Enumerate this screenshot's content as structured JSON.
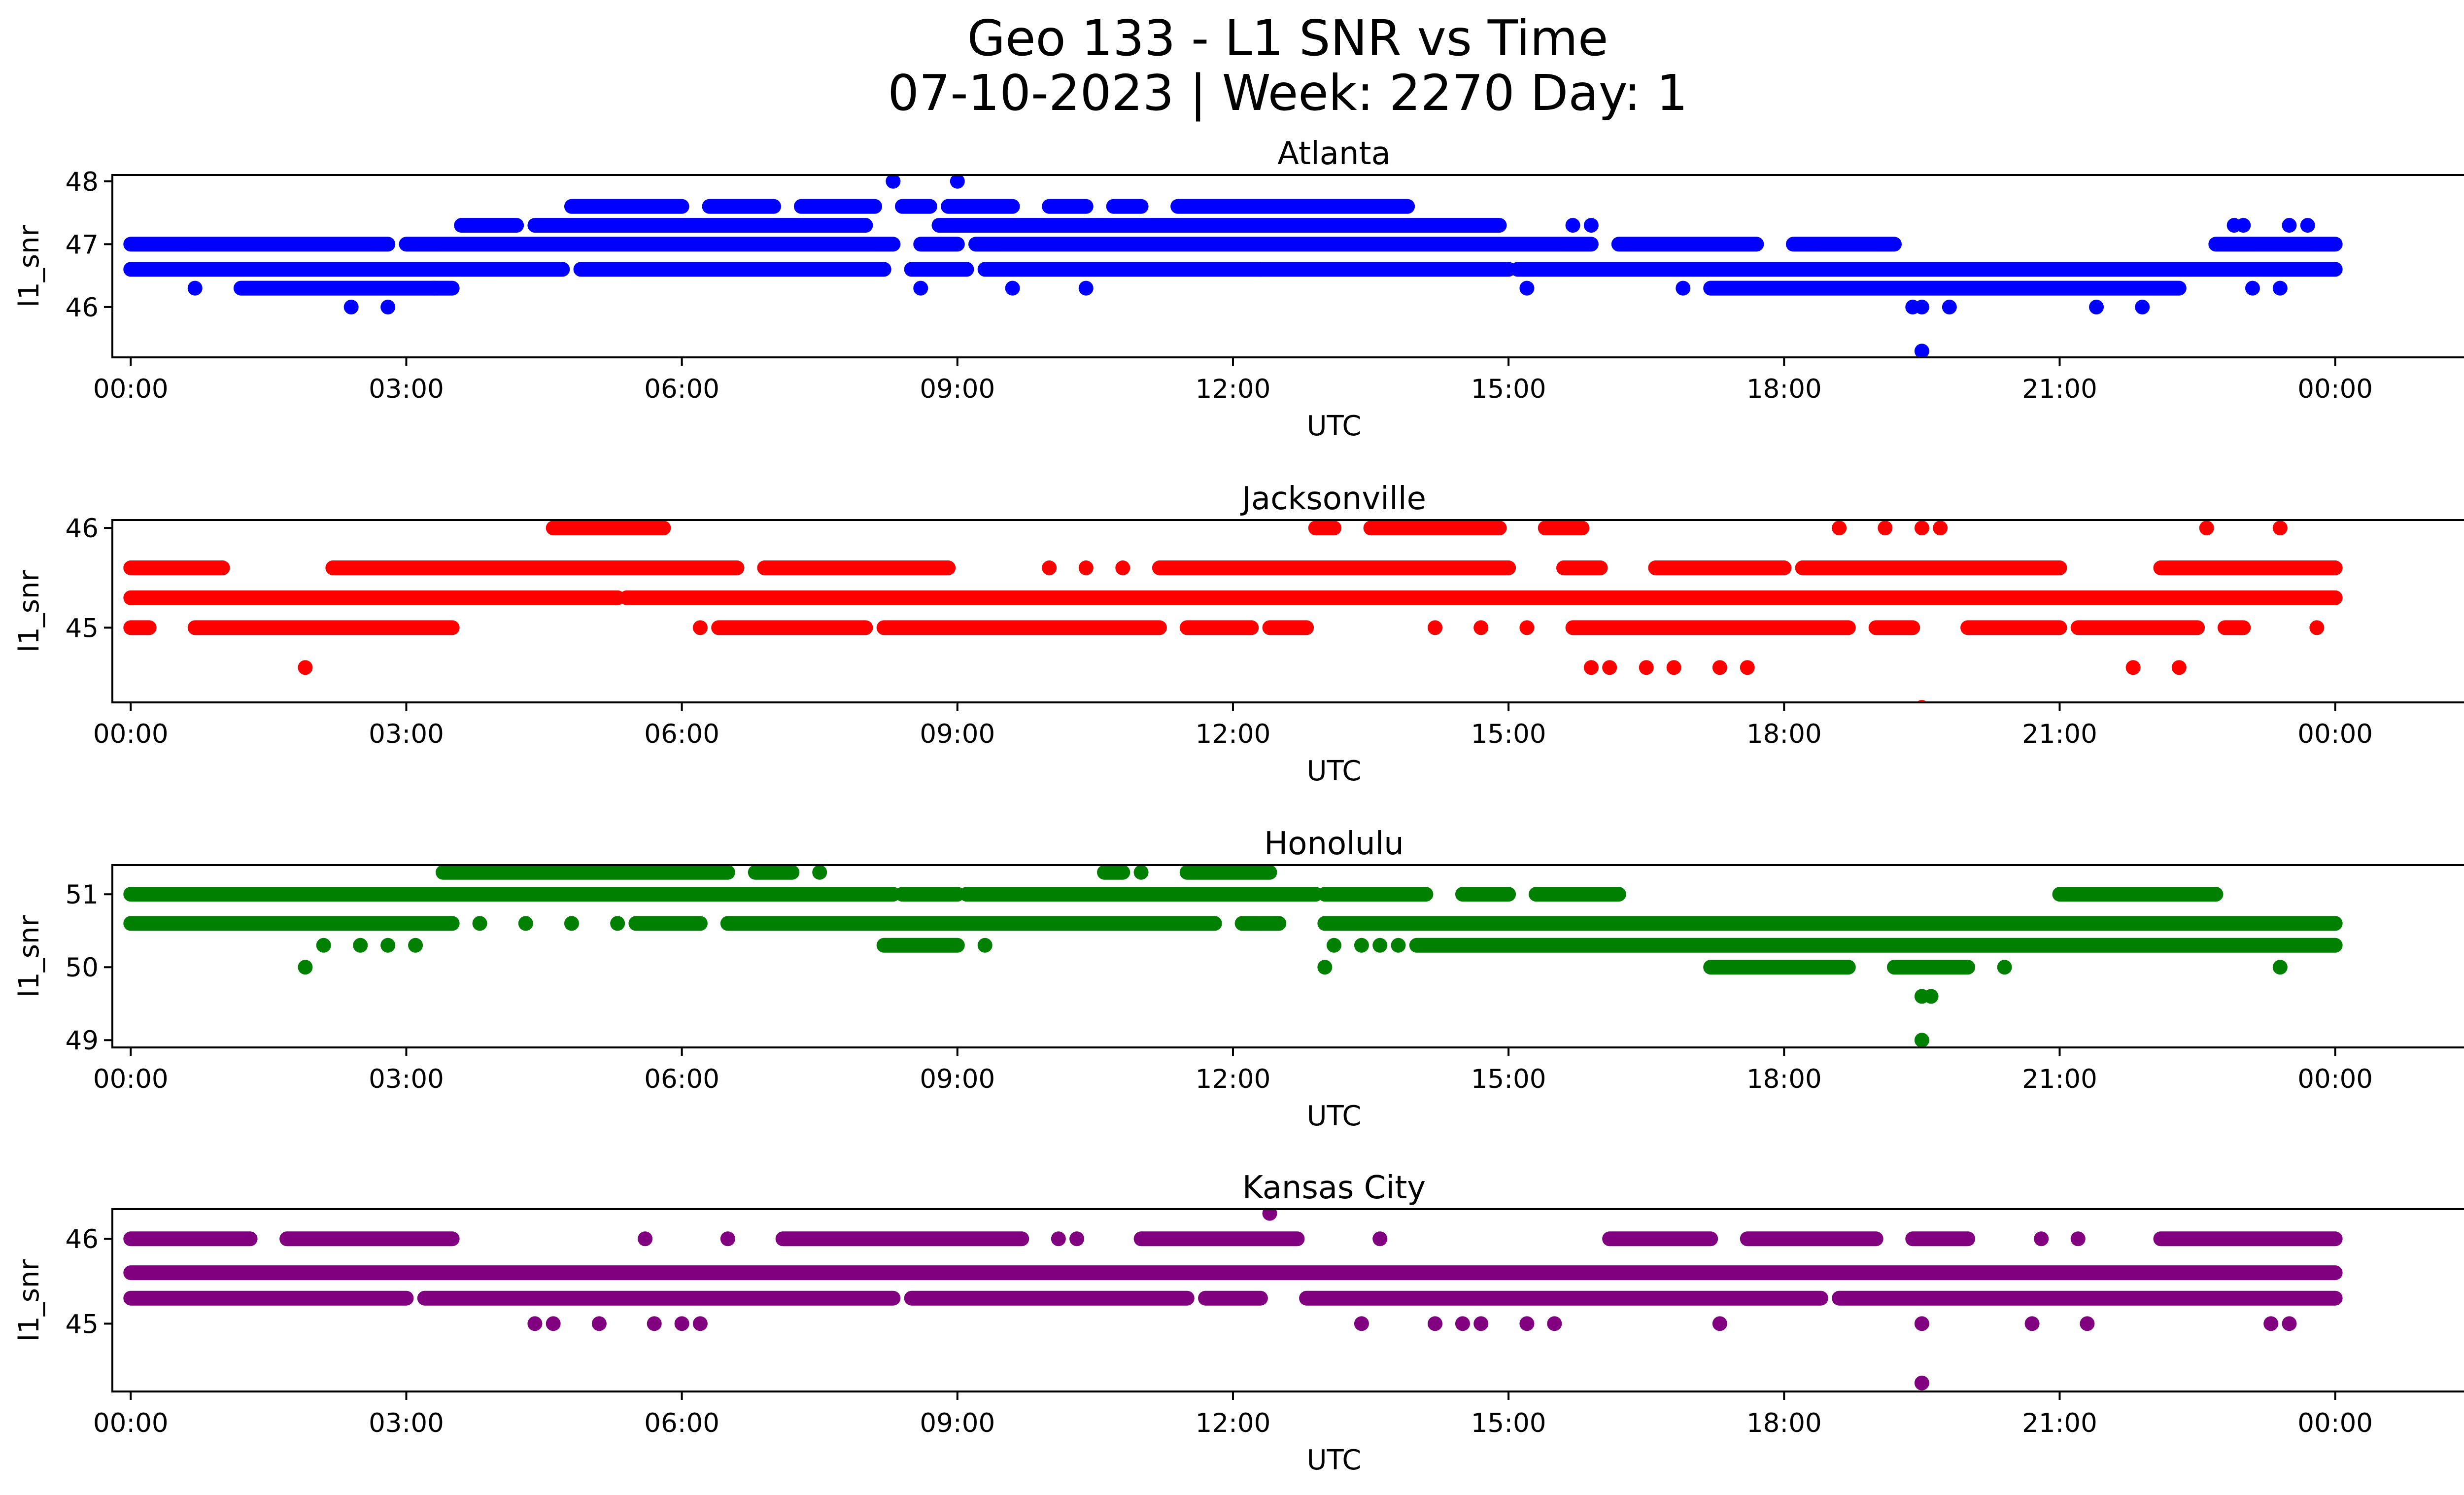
{
  "figure": {
    "title_line1": "Geo 133 - L1 SNR vs Time",
    "title_line2": "07-10-2023 | Week: 2270 Day: 1"
  },
  "chart_data": [
    {
      "type": "scatter",
      "title": "Atlanta",
      "xlabel": "UTC",
      "ylabel": "l1_snr",
      "color": "#0000ff",
      "x_ticks": [
        "00:00",
        "03:00",
        "06:00",
        "09:00",
        "12:00",
        "15:00",
        "18:00",
        "21:00",
        "00:00"
      ],
      "y_ticks": [
        46,
        47,
        48
      ],
      "xlim": [
        -0.2,
        26.4
      ],
      "ylim": [
        45.2,
        48.1
      ],
      "series": [
        {
          "values": [
            {
              "y": 46.6,
              "segments": [
                [
                  0,
                  4.7
                ],
                [
                  4.9,
                  8.2
                ],
                [
                  8.5,
                  9.1
                ],
                [
                  9.3,
                  15.0
                ],
                [
                  15.1,
                  24
                ]
              ]
            },
            {
              "y": 47.0,
              "segments": [
                [
                  0,
                  2.8
                ],
                [
                  3.0,
                  8.3
                ],
                [
                  8.6,
                  9.0
                ],
                [
                  9.2,
                  15.9
                ],
                [
                  16.2,
                  17.7
                ],
                [
                  18.1,
                  19.2
                ],
                [
                  22.7,
                  24
                ]
              ]
            },
            {
              "y": 47.3,
              "segments": [
                [
                  3.6,
                  4.2
                ],
                [
                  4.4,
                  8.0
                ],
                [
                  8.8,
                  14.9
                ]
              ]
            },
            {
              "y": 47.6,
              "segments": [
                [
                  4.8,
                  6.0
                ],
                [
                  6.3,
                  7.0
                ],
                [
                  7.3,
                  8.1
                ],
                [
                  8.4,
                  8.7
                ],
                [
                  8.9,
                  9.6
                ],
                [
                  10.0,
                  10.4
                ],
                [
                  10.7,
                  11.0
                ],
                [
                  11.4,
                  13.9
                ]
              ]
            },
            {
              "y": 46.3,
              "segments": [
                [
                  1.2,
                  3.5
                ],
                [
                  17.2,
                  22.3
                ]
              ]
            }
          ]
        },
        {
          "values": [
            {
              "x": 0.7,
              "y": 46.3
            },
            {
              "x": 2.4,
              "y": 46.0
            },
            {
              "x": 2.8,
              "y": 46.0
            },
            {
              "x": 3.3,
              "y": 46.3
            },
            {
              "x": 8.3,
              "y": 48.0
            },
            {
              "x": 9.0,
              "y": 48.0
            },
            {
              "x": 8.6,
              "y": 46.3
            },
            {
              "x": 9.6,
              "y": 46.3
            },
            {
              "x": 10.4,
              "y": 46.3
            },
            {
              "x": 12.3,
              "y": 46.6
            },
            {
              "x": 15.2,
              "y": 46.3
            },
            {
              "x": 15.7,
              "y": 47.3
            },
            {
              "x": 15.9,
              "y": 47.3
            },
            {
              "x": 16.9,
              "y": 46.3
            },
            {
              "x": 19.4,
              "y": 46.0
            },
            {
              "x": 19.5,
              "y": 46.0
            },
            {
              "x": 19.8,
              "y": 46.0
            },
            {
              "x": 19.5,
              "y": 45.3
            },
            {
              "x": 21.4,
              "y": 46.0
            },
            {
              "x": 21.9,
              "y": 46.0
            },
            {
              "x": 22.9,
              "y": 47.3
            },
            {
              "x": 23.0,
              "y": 47.3
            },
            {
              "x": 23.1,
              "y": 46.3
            },
            {
              "x": 23.5,
              "y": 47.3
            },
            {
              "x": 23.7,
              "y": 47.3
            },
            {
              "x": 23.4,
              "y": 46.3
            }
          ]
        }
      ]
    },
    {
      "type": "scatter",
      "title": "Jacksonville",
      "xlabel": "UTC",
      "ylabel": "l1_snr",
      "color": "#ff0000",
      "x_ticks": [
        "00:00",
        "03:00",
        "06:00",
        "09:00",
        "12:00",
        "15:00",
        "18:00",
        "21:00",
        "00:00"
      ],
      "y_ticks": [
        45,
        46
      ],
      "xlim": [
        -0.2,
        26.4
      ],
      "ylim": [
        44.25,
        46.08
      ],
      "series": [
        {
          "values": [
            {
              "y": 45.3,
              "segments": [
                [
                  0,
                  5.3
                ],
                [
                  5.4,
                  24
                ]
              ]
            },
            {
              "y": 45.6,
              "segments": [
                [
                  0,
                  1.0
                ],
                [
                  2.2,
                  6.6
                ],
                [
                  6.9,
                  8.9
                ],
                [
                  11.2,
                  15.0
                ],
                [
                  15.6,
                  16.0
                ],
                [
                  16.6,
                  18.0
                ],
                [
                  18.2,
                  21.0
                ],
                [
                  22.1,
                  24
                ]
              ]
            },
            {
              "y": 45.0,
              "segments": [
                [
                  0,
                  0.2
                ],
                [
                  0.7,
                  3.5
                ],
                [
                  6.4,
                  8.0
                ],
                [
                  8.2,
                  11.2
                ],
                [
                  11.5,
                  12.2
                ],
                [
                  12.4,
                  12.8
                ],
                [
                  15.7,
                  18.7
                ],
                [
                  19.0,
                  19.4
                ],
                [
                  20.0,
                  21.0
                ],
                [
                  21.2,
                  22.5
                ],
                [
                  22.8,
                  23.0
                ]
              ]
            },
            {
              "y": 46.0,
              "segments": [
                [
                  4.6,
                  5.8
                ],
                [
                  12.9,
                  13.1
                ],
                [
                  13.5,
                  14.9
                ],
                [
                  15.4,
                  15.8
                ]
              ]
            }
          ]
        },
        {
          "values": [
            {
              "x": 1.9,
              "y": 44.6
            },
            {
              "x": 15.9,
              "y": 44.6
            },
            {
              "x": 16.1,
              "y": 44.6
            },
            {
              "x": 16.5,
              "y": 44.6
            },
            {
              "x": 16.8,
              "y": 44.6
            },
            {
              "x": 17.3,
              "y": 44.6
            },
            {
              "x": 17.6,
              "y": 44.6
            },
            {
              "x": 19.5,
              "y": 44.2
            },
            {
              "x": 21.8,
              "y": 44.6
            },
            {
              "x": 22.3,
              "y": 44.6
            },
            {
              "x": 6.2,
              "y": 45.0
            },
            {
              "x": 14.7,
              "y": 45.0
            },
            {
              "x": 15.2,
              "y": 45.0
            },
            {
              "x": 10.0,
              "y": 45.6
            },
            {
              "x": 10.4,
              "y": 45.6
            },
            {
              "x": 10.8,
              "y": 45.6
            },
            {
              "x": 18.6,
              "y": 46.0
            },
            {
              "x": 19.1,
              "y": 46.0
            },
            {
              "x": 19.5,
              "y": 46.0
            },
            {
              "x": 19.7,
              "y": 46.0
            },
            {
              "x": 22.6,
              "y": 46.0
            },
            {
              "x": 23.4,
              "y": 46.0
            },
            {
              "x": 23.8,
              "y": 45.0
            },
            {
              "x": 14.2,
              "y": 45.0
            }
          ]
        }
      ]
    },
    {
      "type": "scatter",
      "title": "Honolulu",
      "xlabel": "UTC",
      "ylabel": "l1_snr",
      "color": "#008000",
      "x_ticks": [
        "00:00",
        "03:00",
        "06:00",
        "09:00",
        "12:00",
        "15:00",
        "18:00",
        "21:00",
        "00:00"
      ],
      "y_ticks": [
        49,
        50,
        51
      ],
      "xlim": [
        -0.2,
        26.4
      ],
      "ylim": [
        48.9,
        51.4
      ],
      "series": [
        {
          "values": [
            {
              "y": 51.0,
              "segments": [
                [
                  0,
                  8.3
                ],
                [
                  8.4,
                  9.0
                ],
                [
                  9.1,
                  12.9
                ],
                [
                  13.0,
                  14.1
                ],
                [
                  14.5,
                  15.0
                ],
                [
                  15.3,
                  16.2
                ],
                [
                  21.0,
                  22.7
                ]
              ]
            },
            {
              "y": 50.6,
              "segments": [
                [
                  0,
                  3.5
                ],
                [
                  5.5,
                  6.2
                ],
                [
                  6.5,
                  11.8
                ],
                [
                  12.1,
                  12.5
                ],
                [
                  13.0,
                  24
                ]
              ]
            },
            {
              "y": 50.3,
              "segments": [
                [
                  8.2,
                  9.0
                ],
                [
                  14.0,
                  24
                ]
              ]
            },
            {
              "y": 51.3,
              "segments": [
                [
                  3.4,
                  6.5
                ],
                [
                  6.8,
                  7.2
                ],
                [
                  10.6,
                  10.8
                ],
                [
                  11.5,
                  12.4
                ]
              ]
            },
            {
              "y": 50.0,
              "segments": [
                [
                  17.2,
                  18.7
                ],
                [
                  19.2,
                  20.0
                ]
              ]
            }
          ]
        },
        {
          "values": [
            {
              "x": 1.9,
              "y": 50.0
            },
            {
              "x": 2.1,
              "y": 50.3
            },
            {
              "x": 2.5,
              "y": 50.3
            },
            {
              "x": 2.8,
              "y": 50.3
            },
            {
              "x": 3.1,
              "y": 50.3
            },
            {
              "x": 3.8,
              "y": 50.6
            },
            {
              "x": 4.3,
              "y": 50.6
            },
            {
              "x": 4.8,
              "y": 50.6
            },
            {
              "x": 5.3,
              "y": 50.6
            },
            {
              "x": 9.3,
              "y": 50.3
            },
            {
              "x": 13.0,
              "y": 50.0
            },
            {
              "x": 13.1,
              "y": 50.3
            },
            {
              "x": 13.4,
              "y": 50.3
            },
            {
              "x": 13.6,
              "y": 50.3
            },
            {
              "x": 13.8,
              "y": 50.3
            },
            {
              "x": 7.5,
              "y": 51.3
            },
            {
              "x": 11.0,
              "y": 51.3
            },
            {
              "x": 12.3,
              "y": 50.6
            },
            {
              "x": 19.5,
              "y": 49.6
            },
            {
              "x": 19.6,
              "y": 49.6
            },
            {
              "x": 19.5,
              "y": 49.0
            },
            {
              "x": 20.4,
              "y": 50.0
            },
            {
              "x": 23.4,
              "y": 50.0
            },
            {
              "x": 22.7,
              "y": 51.0
            }
          ]
        }
      ]
    },
    {
      "type": "scatter",
      "title": "Kansas City",
      "xlabel": "UTC",
      "ylabel": "l1_snr",
      "color": "#800080",
      "x_ticks": [
        "00:00",
        "03:00",
        "06:00",
        "09:00",
        "12:00",
        "15:00",
        "18:00",
        "21:00",
        "00:00"
      ],
      "y_ticks": [
        45,
        46
      ],
      "xlim": [
        -0.2,
        26.4
      ],
      "ylim": [
        44.2,
        46.35
      ],
      "series": [
        {
          "values": [
            {
              "y": 45.6,
              "segments": [
                [
                  0,
                  24
                ]
              ]
            },
            {
              "y": 45.3,
              "segments": [
                [
                  0,
                  3.0
                ],
                [
                  3.2,
                  8.3
                ],
                [
                  8.5,
                  11.5
                ],
                [
                  11.7,
                  12.3
                ],
                [
                  12.8,
                  18.4
                ],
                [
                  18.6,
                  24
                ]
              ]
            },
            {
              "y": 46.0,
              "segments": [
                [
                  0,
                  1.3
                ],
                [
                  1.7,
                  3.5
                ],
                [
                  7.1,
                  9.7
                ],
                [
                  11.0,
                  12.7
                ],
                [
                  16.1,
                  17.2
                ],
                [
                  17.6,
                  19.0
                ],
                [
                  19.4,
                  20.0
                ],
                [
                  22.1,
                  24
                ]
              ]
            }
          ]
        },
        {
          "values": [
            {
              "x": 4.4,
              "y": 45.0
            },
            {
              "x": 4.6,
              "y": 45.0
            },
            {
              "x": 5.1,
              "y": 45.0
            },
            {
              "x": 5.7,
              "y": 45.0
            },
            {
              "x": 6.0,
              "y": 45.0
            },
            {
              "x": 6.2,
              "y": 45.0
            },
            {
              "x": 5.6,
              "y": 46.0
            },
            {
              "x": 6.5,
              "y": 46.0
            },
            {
              "x": 10.1,
              "y": 46.0
            },
            {
              "x": 10.3,
              "y": 46.0
            },
            {
              "x": 12.4,
              "y": 46.3
            },
            {
              "x": 13.6,
              "y": 46.0
            },
            {
              "x": 13.4,
              "y": 45.0
            },
            {
              "x": 14.2,
              "y": 45.0
            },
            {
              "x": 14.5,
              "y": 45.0
            },
            {
              "x": 14.7,
              "y": 45.0
            },
            {
              "x": 15.2,
              "y": 45.0
            },
            {
              "x": 15.5,
              "y": 45.0
            },
            {
              "x": 17.3,
              "y": 45.0
            },
            {
              "x": 19.5,
              "y": 45.0
            },
            {
              "x": 19.5,
              "y": 44.3
            },
            {
              "x": 20.7,
              "y": 45.0
            },
            {
              "x": 20.8,
              "y": 46.0
            },
            {
              "x": 21.2,
              "y": 46.0
            },
            {
              "x": 21.3,
              "y": 45.0
            },
            {
              "x": 23.3,
              "y": 45.0
            },
            {
              "x": 23.5,
              "y": 45.0
            }
          ]
        }
      ]
    }
  ]
}
